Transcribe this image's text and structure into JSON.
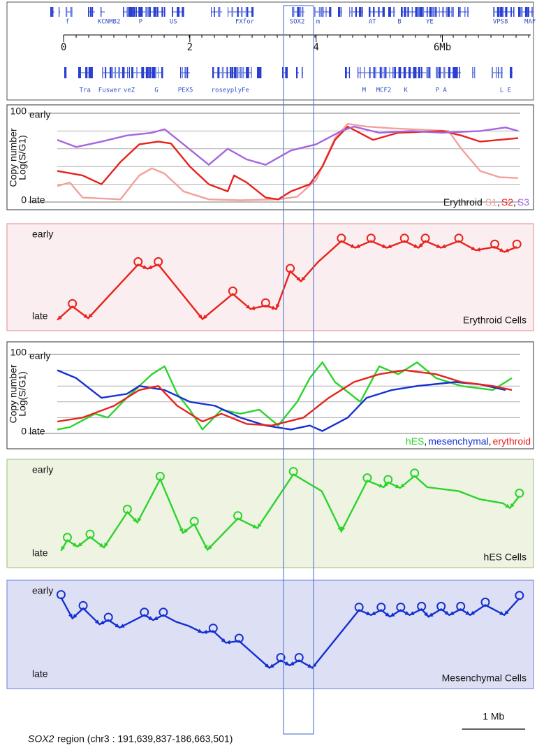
{
  "gene_track": {
    "xlim": [
      -0.1,
      7.2
    ],
    "xticks": [
      0,
      2,
      4,
      {
        "value": 6,
        "label": "6Mb"
      }
    ],
    "top_genes": [
      {
        "label": "f",
        "x": 0.06
      },
      {
        "label": "KCNMB2",
        "x": 0.72
      },
      {
        "label": "P",
        "x": 1.22
      },
      {
        "label": "US",
        "x": 1.74
      },
      {
        "label": "FXfor",
        "x": 2.87
      },
      {
        "label": "SOX2",
        "x": 3.7
      },
      {
        "label": "m",
        "x": 4.03
      },
      {
        "label": "AT",
        "x": 4.89
      },
      {
        "label": "B",
        "x": 5.32
      },
      {
        "label": "YE",
        "x": 5.8
      },
      {
        "label": "VPS8",
        "x": 6.92
      },
      {
        "label": "MAF",
        "x": 7.39
      }
    ],
    "bottom_genes": [
      {
        "label": "Tra",
        "x": 0.34
      },
      {
        "label": "Fuswer",
        "x": 0.73
      },
      {
        "label": "veZ",
        "x": 1.04
      },
      {
        "label": "G",
        "x": 1.47
      },
      {
        "label": "PEX5",
        "x": 1.93
      },
      {
        "label": "rosey",
        "x": 2.49
      },
      {
        "label": "plyFe",
        "x": 2.79
      },
      {
        "label": "M",
        "x": 4.76
      },
      {
        "label": "MCF2",
        "x": 5.07
      },
      {
        "label": "K",
        "x": 5.42
      },
      {
        "label": "P A",
        "x": 5.98
      },
      {
        "label": "L E",
        "x": 7.0
      }
    ]
  },
  "chart_data": [
    {
      "type": "line",
      "early_label": "early",
      "late_label": "late",
      "y_label": "Copy number",
      "y_label2": "Log(S/G1)",
      "xlim": [
        -0.1,
        7.2
      ],
      "ylim": [
        0,
        100
      ],
      "yticks": [
        0,
        100
      ],
      "minor_gridlines": [
        20,
        40,
        60,
        80
      ],
      "legend_title": "Erythroid",
      "legend_separator": ",",
      "series": [
        {
          "name": "S1",
          "color": "#f3a09c",
          "x": [
            -0.1,
            0.1,
            0.3,
            0.9,
            1.2,
            1.4,
            1.6,
            1.9,
            2.3,
            2.8,
            3.4,
            3.7,
            4.0,
            4.3,
            4.5,
            4.8,
            5.2,
            6.1,
            6.3,
            6.6,
            6.9,
            7.2
          ],
          "values": [
            18,
            22,
            5,
            3,
            30,
            38,
            32,
            12,
            3,
            2,
            3,
            6,
            25,
            72,
            88,
            85,
            83,
            80,
            60,
            35,
            28,
            27
          ]
        },
        {
          "name": "S2",
          "color": "#e8221c",
          "x": [
            -0.1,
            0.3,
            0.6,
            0.9,
            1.2,
            1.5,
            1.7,
            2.0,
            2.3,
            2.6,
            2.7,
            2.9,
            3.2,
            3.4,
            3.6,
            3.9,
            4.1,
            4.3,
            4.5,
            4.9,
            5.3,
            6.0,
            6.3,
            6.6,
            7.2
          ],
          "values": [
            35,
            30,
            20,
            45,
            65,
            68,
            66,
            40,
            20,
            12,
            30,
            22,
            5,
            3,
            12,
            20,
            40,
            70,
            85,
            70,
            78,
            80,
            75,
            68,
            72
          ]
        },
        {
          "name": "S3",
          "color": "#a565e0",
          "x": [
            -0.1,
            0.2,
            0.6,
            1.0,
            1.4,
            1.6,
            1.9,
            2.3,
            2.6,
            2.9,
            3.2,
            3.6,
            4.0,
            4.4,
            4.6,
            5.0,
            5.5,
            6.0,
            6.6,
            7.0,
            7.2
          ],
          "values": [
            70,
            62,
            68,
            75,
            78,
            82,
            65,
            42,
            60,
            48,
            42,
            58,
            65,
            80,
            85,
            78,
            80,
            78,
            80,
            84,
            80
          ]
        }
      ]
    },
    {
      "type": "schematic",
      "title": "Erythroid Cells",
      "early_label": "early",
      "late_label": "late",
      "background": "#fbeef0",
      "border": "#e89a9a",
      "xlim": [
        -0.1,
        7.2
      ],
      "ylim": [
        0,
        100
      ],
      "x": [
        -0.1,
        0.14,
        0.39,
        1.18,
        1.33,
        1.5,
        2.2,
        2.68,
        2.96,
        3.2,
        3.37,
        3.59,
        3.76,
        4.03,
        4.4,
        4.62,
        4.87,
        5.12,
        5.4,
        5.62,
        5.73,
        5.98,
        6.26,
        6.53,
        6.83,
        6.98,
        7.18
      ],
      "series": [
        {
          "color": "#e8221c",
          "values": [
            2,
            18,
            4,
            68,
            63,
            68,
            3,
            33,
            15,
            19,
            15,
            60,
            48,
            71,
            96,
            88,
            96,
            88,
            96,
            88,
            96,
            88,
            96,
            85,
            89,
            83,
            89
          ]
        }
      ]
    },
    {
      "type": "line",
      "early_label": "early",
      "late_label": "late",
      "y_label": "Copy number",
      "y_label2": "Log(S/G1)",
      "xlim": [
        -0.1,
        7.2
      ],
      "ylim": [
        0,
        100
      ],
      "yticks": [
        0,
        100
      ],
      "minor_gridlines": [
        20,
        40,
        60,
        80
      ],
      "legend_separator": ",",
      "series": [
        {
          "name": "hES",
          "color": "#2bd42b",
          "x": [
            -0.1,
            0.1,
            0.5,
            0.7,
            1.0,
            1.2,
            1.4,
            1.6,
            1.8,
            2.0,
            2.2,
            2.5,
            2.8,
            3.1,
            3.4,
            3.7,
            3.9,
            4.1,
            4.3,
            4.7,
            5.0,
            5.3,
            5.6,
            5.9,
            6.3,
            6.8,
            7.1
          ],
          "values": [
            5,
            8,
            25,
            20,
            45,
            60,
            75,
            85,
            50,
            30,
            5,
            30,
            25,
            30,
            10,
            40,
            70,
            90,
            65,
            40,
            85,
            75,
            90,
            70,
            60,
            55,
            70
          ]
        },
        {
          "name": "mesenchymal",
          "color": "#1530d0",
          "x": [
            -0.1,
            0.2,
            0.6,
            1.0,
            1.2,
            1.6,
            2.0,
            2.4,
            2.8,
            3.2,
            3.6,
            3.9,
            4.1,
            4.5,
            4.8,
            5.2,
            5.6,
            6.2,
            6.6,
            7.0
          ],
          "values": [
            80,
            70,
            45,
            50,
            60,
            55,
            40,
            35,
            20,
            10,
            5,
            10,
            3,
            20,
            45,
            55,
            60,
            65,
            62,
            55
          ]
        },
        {
          "name": "erythroid",
          "color": "#e8221c",
          "x": [
            -0.1,
            0.3,
            0.8,
            1.2,
            1.5,
            1.8,
            2.2,
            2.5,
            2.9,
            3.3,
            3.8,
            4.2,
            4.6,
            5.0,
            5.4,
            5.9,
            6.3,
            6.8,
            7.1
          ],
          "values": [
            15,
            20,
            35,
            55,
            60,
            35,
            15,
            25,
            12,
            10,
            20,
            45,
            65,
            75,
            80,
            75,
            65,
            60,
            55
          ]
        }
      ]
    },
    {
      "type": "schematic",
      "title": "hES Cells",
      "early_label": "early",
      "late_label": "late",
      "background": "#eef3e2",
      "border": "#a9c98a",
      "xlim": [
        -0.1,
        7.2
      ],
      "ylim": [
        0,
        100
      ],
      "x": [
        -0.04,
        0.06,
        0.22,
        0.42,
        0.64,
        1.01,
        1.17,
        1.53,
        1.89,
        2.07,
        2.28,
        2.76,
        3.07,
        3.64,
        4.09,
        4.4,
        4.81,
        5.07,
        5.14,
        5.33,
        5.56,
        5.76,
        6.26,
        6.59,
        6.96,
        7.07,
        7.22
      ],
      "series": [
        {
          "color": "#2bd42b",
          "values": [
            2,
            15,
            7,
            19,
            6,
            50,
            37,
            91,
            24,
            35,
            3,
            42,
            30,
            97,
            76,
            26,
            89,
            81,
            87,
            80,
            95,
            81,
            76,
            66,
            61,
            55,
            70
          ]
        }
      ]
    },
    {
      "type": "schematic",
      "title": "Mesenchymal Cells",
      "early_label": "early",
      "late_label": "late",
      "background": "#dde0f5",
      "border": "#7f8fe0",
      "xlim": [
        -0.1,
        7.2
      ],
      "ylim": [
        0,
        100
      ],
      "x": [
        -0.04,
        0.14,
        0.31,
        0.57,
        0.71,
        0.89,
        1.28,
        1.42,
        1.58,
        1.78,
        1.98,
        2.2,
        2.37,
        2.57,
        2.78,
        3.26,
        3.44,
        3.58,
        3.73,
        3.94,
        4.68,
        4.87,
        5.03,
        5.17,
        5.34,
        5.48,
        5.67,
        5.78,
        5.98,
        6.11,
        6.29,
        6.44,
        6.68,
        6.98,
        7.22
      ],
      "series": [
        {
          "color": "#1530d0",
          "values": [
            92,
            67,
            79,
            60,
            65,
            56,
            71,
            65,
            71,
            63,
            58,
            50,
            52,
            38,
            40,
            8,
            17,
            11,
            17,
            8,
            77,
            71,
            77,
            69,
            77,
            71,
            78,
            69,
            78,
            71,
            78,
            71,
            83,
            71,
            91
          ]
        }
      ]
    }
  ],
  "scale_bar": {
    "value": 1,
    "label": "1 Mb"
  },
  "caption": {
    "gene": "SOX2",
    "text": "region (chr3 : 191,639,837-186,663,501)"
  }
}
